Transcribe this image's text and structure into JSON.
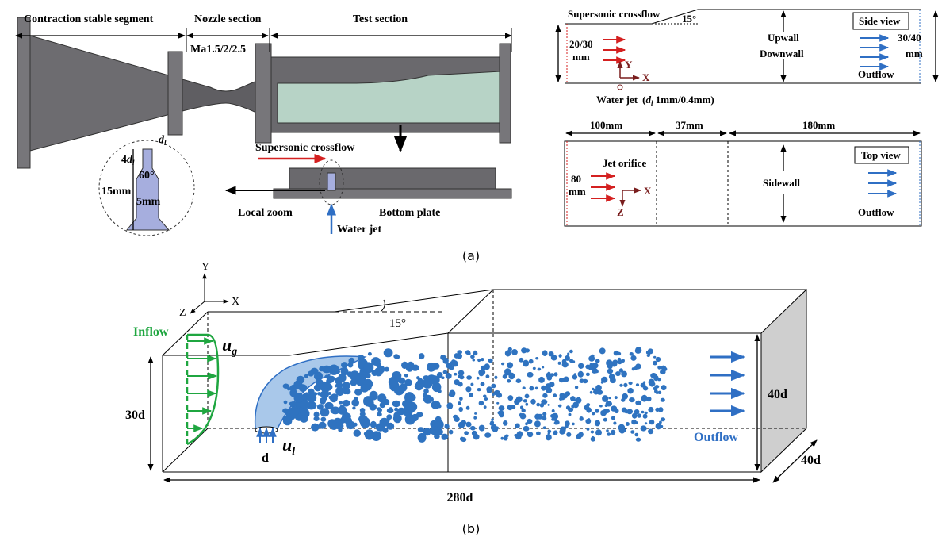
{
  "panel_a": {
    "label": "(a)",
    "facility": {
      "contraction": "Contraction stable segment",
      "nozzle": "Nozzle section",
      "test": "Test section",
      "mach": "Ma1.5/2/2.5",
      "crossflow": "Supersonic crossflow",
      "local_zoom": "Local zoom",
      "bottom_plate": "Bottom plate",
      "water_jet": "Water jet",
      "orifice": {
        "d_base": "d",
        "d_sub": "l",
        "depth_prefix": "4",
        "depth_base": "d",
        "depth_sub": "l",
        "angle": "60°",
        "height": "15mm",
        "width": "5mm"
      }
    },
    "side_view": {
      "crossflow": "Supersonic crossflow",
      "angle": "15°",
      "inlet_height": [
        "20/30",
        "mm"
      ],
      "y_axis": "Y",
      "x_axis": "X",
      "upwall": "Upwall",
      "downwall": "Downwall",
      "title": "Side view",
      "outlet_height": [
        "30/40",
        "mm"
      ],
      "outflow": "Outflow",
      "water_jet": "Water jet",
      "diameter": {
        "open": "(",
        "base": "d",
        "sub": "l",
        "rest": " 1mm/0.4mm)"
      }
    },
    "top_view": {
      "lengths": [
        "100mm",
        "37mm",
        "180mm"
      ],
      "orifice": "Jet orifice",
      "width": [
        "80",
        "mm"
      ],
      "x_axis": "X",
      "z_axis": "Z",
      "sidewall": "Sidewall",
      "title": "Top view",
      "outflow": "Outflow"
    }
  },
  "panel_b": {
    "label": "(b)",
    "axes": {
      "y": "Y",
      "x": "X",
      "z": "Z"
    },
    "inflow": "Inflow",
    "u_g": {
      "base": "u",
      "sub": "g"
    },
    "u_l": {
      "base": "u",
      "sub": "l"
    },
    "angle": "15°",
    "inlet_height": "30d",
    "diameter": "d",
    "outlet_height": "40d",
    "outflow": "Outflow",
    "depth": "40d",
    "length": "280d"
  }
}
